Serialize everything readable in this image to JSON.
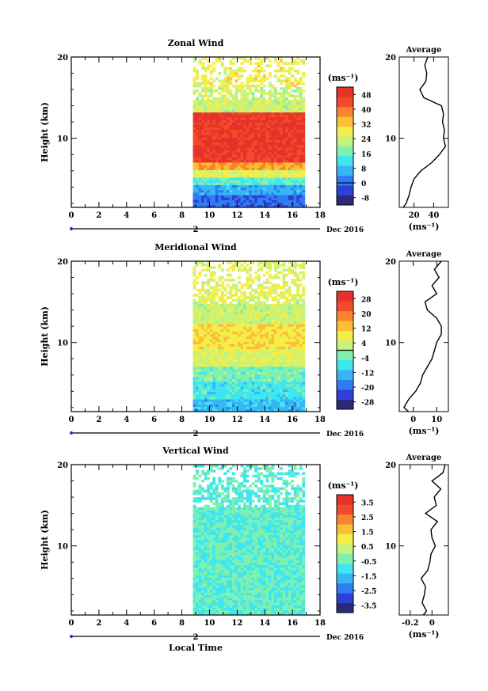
{
  "figure": {
    "xlabel": "Local Time",
    "date_label": "Dec 2016",
    "day_label": "2"
  },
  "colors": {
    "jet": [
      "#2c2a78",
      "#2f3fd8",
      "#2f7df0",
      "#37b6f5",
      "#3fe6f0",
      "#7ff0b0",
      "#c4f27a",
      "#f4ee4a",
      "#fbbf35",
      "#f8852b",
      "#f24a2a",
      "#e6322a"
    ]
  },
  "chart_data": [
    {
      "type": "heatmap",
      "title": "Zonal Wind",
      "ylabel": "Height (km)",
      "units": "(ms⁻¹)",
      "x_ticks": [
        0,
        2,
        4,
        6,
        8,
        10,
        12,
        14,
        16,
        18
      ],
      "y_ticks": [
        10,
        20
      ],
      "xlim": [
        0,
        18
      ],
      "ylim": [
        1.5,
        20
      ],
      "data_x_range": [
        8.8,
        16.9
      ],
      "colorbar_ticks": [
        -8,
        0,
        8,
        16,
        24,
        32,
        40,
        48
      ],
      "colorbar_range": [
        -12,
        52
      ],
      "contour_level": 0,
      "profile": {
        "title": "Average",
        "xlabel": "(ms⁻¹)",
        "x_ticks": [
          20,
          40
        ],
        "xlim": [
          5,
          55
        ],
        "y_ticks": [
          10,
          20
        ],
        "heights": [
          1.5,
          2,
          3,
          4,
          5,
          6,
          7,
          8,
          9,
          10,
          11,
          12,
          13,
          14,
          15,
          16,
          17,
          18,
          19,
          20
        ],
        "values": [
          9,
          12,
          15,
          17,
          20,
          27,
          38,
          46,
          52,
          50,
          51,
          49,
          50,
          48,
          30,
          26,
          32,
          33,
          31,
          34
        ]
      }
    },
    {
      "type": "heatmap",
      "title": "Meridional Wind",
      "ylabel": "Height (km)",
      "units": "(ms⁻¹)",
      "x_ticks": [
        0,
        2,
        4,
        6,
        8,
        10,
        12,
        14,
        16,
        18
      ],
      "y_ticks": [
        10,
        20
      ],
      "xlim": [
        0,
        18
      ],
      "ylim": [
        1.5,
        20
      ],
      "data_x_range": [
        8.8,
        16.9
      ],
      "colorbar_ticks": [
        -28,
        -20,
        -12,
        -4,
        4,
        12,
        20,
        28
      ],
      "colorbar_range": [
        -32,
        32
      ],
      "contour_level": 0,
      "profile": {
        "title": "Average",
        "xlabel": "(ms⁻¹)",
        "x_ticks": [
          0,
          10
        ],
        "xlim": [
          -6,
          15
        ],
        "y_ticks": [
          10,
          20
        ],
        "heights": [
          1.5,
          2,
          3,
          4,
          5,
          6,
          7,
          8,
          9,
          10,
          11,
          12,
          13,
          14,
          15,
          16,
          17,
          18,
          19,
          20
        ],
        "values": [
          -2,
          -4,
          -2,
          1,
          3,
          4,
          6,
          8,
          9,
          10,
          12,
          12,
          10,
          6,
          5,
          10,
          8,
          11,
          9,
          12
        ]
      }
    },
    {
      "type": "heatmap",
      "title": "Vertical Wind",
      "ylabel": "Height (km)",
      "units": "(ms⁻¹)",
      "x_ticks": [
        0,
        2,
        4,
        6,
        8,
        10,
        12,
        14,
        16,
        18
      ],
      "y_ticks": [
        10,
        20
      ],
      "xlim": [
        0,
        18
      ],
      "ylim": [
        1.5,
        20
      ],
      "data_x_range": [
        8.8,
        16.9
      ],
      "colorbar_ticks": [
        -3.5,
        -2.5,
        -1.5,
        -0.5,
        0.5,
        1.5,
        2.5,
        3.5
      ],
      "colorbar_range": [
        -4,
        4
      ],
      "profile": {
        "title": "Average",
        "xlabel": "(ms⁻¹)",
        "x_ticks": [
          -0.2,
          0.0
        ],
        "xlim": [
          -0.3,
          0.15
        ],
        "y_ticks": [
          10,
          20
        ],
        "heights": [
          1.5,
          2,
          3,
          4,
          5,
          6,
          7,
          8,
          9,
          10,
          11,
          12,
          13,
          14,
          15,
          16,
          17,
          18,
          19,
          20
        ],
        "values": [
          -0.08,
          -0.05,
          -0.09,
          -0.07,
          -0.06,
          -0.1,
          -0.04,
          -0.02,
          -0.01,
          0.03,
          0.0,
          -0.01,
          0.05,
          -0.06,
          0.04,
          0.02,
          0.08,
          0.0,
          0.1,
          0.12
        ]
      }
    }
  ]
}
